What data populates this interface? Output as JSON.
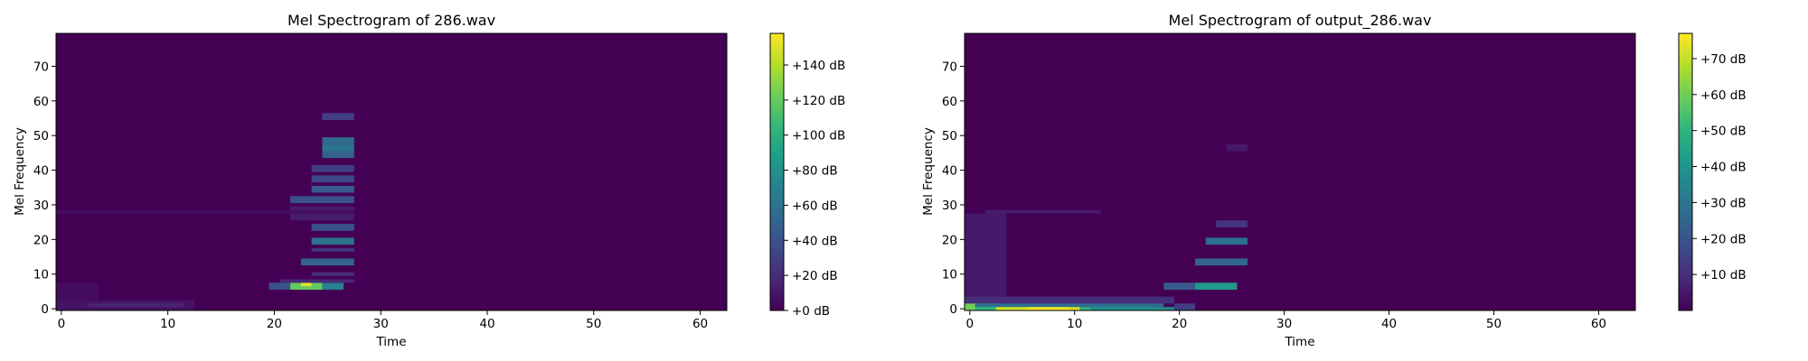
{
  "chart_data": [
    {
      "type": "heatmap",
      "title": "Mel Spectrogram of 286.wav",
      "xlabel": "Time",
      "ylabel": "Mel Frequency",
      "xlim": [
        -0.5,
        62.5
      ],
      "ylim": [
        -0.5,
        79.5
      ],
      "x_ticks": [
        0,
        10,
        20,
        30,
        40,
        50,
        60
      ],
      "y_ticks": [
        0,
        10,
        20,
        30,
        40,
        50,
        60,
        70
      ],
      "colormap": "viridis",
      "colorbar": {
        "min": 0,
        "max": 158,
        "ticks": [
          0,
          20,
          40,
          60,
          80,
          100,
          120,
          140
        ],
        "tick_labels": [
          "+0 dB",
          "+20 dB",
          "+40 dB",
          "+60 dB",
          "+80 dB",
          "+100 dB",
          "+120 dB",
          "+140 dB"
        ]
      },
      "cells": [
        {
          "x": [
            0,
            13
          ],
          "y": [
            0,
            3
          ],
          "v": 8
        },
        {
          "x": [
            0,
            4
          ],
          "y": [
            3,
            8
          ],
          "v": 5
        },
        {
          "x": [
            3,
            12
          ],
          "y": [
            1,
            2
          ],
          "v": 16
        },
        {
          "x": [
            20,
            23
          ],
          "y": [
            6,
            8
          ],
          "v": 40
        },
        {
          "x": [
            22,
            25
          ],
          "y": [
            6,
            8
          ],
          "v": 120
        },
        {
          "x": [
            23,
            24
          ],
          "y": [
            7,
            8
          ],
          "v": 150
        },
        {
          "x": [
            25,
            27
          ],
          "y": [
            6,
            8
          ],
          "v": 70
        },
        {
          "x": [
            21,
            28
          ],
          "y": [
            8,
            9
          ],
          "v": 18
        },
        {
          "x": [
            23,
            28
          ],
          "y": [
            13,
            15
          ],
          "v": 50
        },
        {
          "x": [
            24,
            28
          ],
          "y": [
            10,
            11
          ],
          "v": 22
        },
        {
          "x": [
            24,
            28
          ],
          "y": [
            19,
            21
          ],
          "v": 60
        },
        {
          "x": [
            24,
            28
          ],
          "y": [
            17,
            18
          ],
          "v": 25
        },
        {
          "x": [
            24,
            28
          ],
          "y": [
            23,
            25
          ],
          "v": 40
        },
        {
          "x": [
            22,
            28
          ],
          "y": [
            31,
            33
          ],
          "v": 40
        },
        {
          "x": [
            24,
            28
          ],
          "y": [
            34,
            36
          ],
          "v": 45
        },
        {
          "x": [
            24,
            28
          ],
          "y": [
            37,
            39
          ],
          "v": 35
        },
        {
          "x": [
            24,
            28
          ],
          "y": [
            40,
            42
          ],
          "v": 30
        },
        {
          "x": [
            25,
            28
          ],
          "y": [
            44,
            46
          ],
          "v": 50
        },
        {
          "x": [
            25,
            28
          ],
          "y": [
            46,
            48
          ],
          "v": 60
        },
        {
          "x": [
            25,
            28
          ],
          "y": [
            48,
            50
          ],
          "v": 55
        },
        {
          "x": [
            25,
            28
          ],
          "y": [
            55,
            57
          ],
          "v": 30
        },
        {
          "x": [
            22,
            28
          ],
          "y": [
            26,
            30
          ],
          "v": 12
        },
        {
          "x": [
            0,
            28
          ],
          "y": [
            28,
            29
          ],
          "v": 6
        }
      ]
    },
    {
      "type": "heatmap",
      "title": "Mel Spectrogram of output_286.wav",
      "xlabel": "Time",
      "ylabel": "Mel Frequency",
      "xlim": [
        -0.5,
        63.5
      ],
      "ylim": [
        -0.5,
        79.5
      ],
      "x_ticks": [
        0,
        10,
        20,
        30,
        40,
        50,
        60
      ],
      "y_ticks": [
        0,
        10,
        20,
        30,
        40,
        50,
        60,
        70
      ],
      "colormap": "viridis",
      "colorbar": {
        "min": 0,
        "max": 77,
        "ticks": [
          10,
          20,
          30,
          40,
          50,
          60,
          70
        ],
        "tick_labels": [
          "+10 dB",
          "+20 dB",
          "+30 dB",
          "+40 dB",
          "+50 dB",
          "+60 dB",
          "+70 dB"
        ]
      },
      "cells": [
        {
          "x": [
            0,
            4
          ],
          "y": [
            2,
            28
          ],
          "v": 5
        },
        {
          "x": [
            0,
            20
          ],
          "y": [
            2,
            4
          ],
          "v": 10
        },
        {
          "x": [
            0,
            3
          ],
          "y": [
            0,
            2
          ],
          "v": 60
        },
        {
          "x": [
            1,
            18
          ],
          "y": [
            0,
            1
          ],
          "v": 50
        },
        {
          "x": [
            3,
            11
          ],
          "y": [
            0,
            1
          ],
          "v": 72
        },
        {
          "x": [
            6,
            10
          ],
          "y": [
            0,
            1
          ],
          "v": 76
        },
        {
          "x": [
            12,
            20
          ],
          "y": [
            0,
            1
          ],
          "v": 38
        },
        {
          "x": [
            1,
            19
          ],
          "y": [
            1,
            2
          ],
          "v": 28
        },
        {
          "x": [
            20,
            22
          ],
          "y": [
            0,
            2
          ],
          "v": 14
        },
        {
          "x": [
            19,
            22
          ],
          "y": [
            6,
            8
          ],
          "v": 22
        },
        {
          "x": [
            22,
            26
          ],
          "y": [
            6,
            8
          ],
          "v": 42
        },
        {
          "x": [
            22,
            27
          ],
          "y": [
            13,
            15
          ],
          "v": 25
        },
        {
          "x": [
            23,
            27
          ],
          "y": [
            19,
            21
          ],
          "v": 28
        },
        {
          "x": [
            24,
            27
          ],
          "y": [
            24,
            26
          ],
          "v": 12
        },
        {
          "x": [
            2,
            13
          ],
          "y": [
            28,
            29
          ],
          "v": 6
        },
        {
          "x": [
            25,
            27
          ],
          "y": [
            46,
            48
          ],
          "v": 5
        }
      ]
    }
  ]
}
